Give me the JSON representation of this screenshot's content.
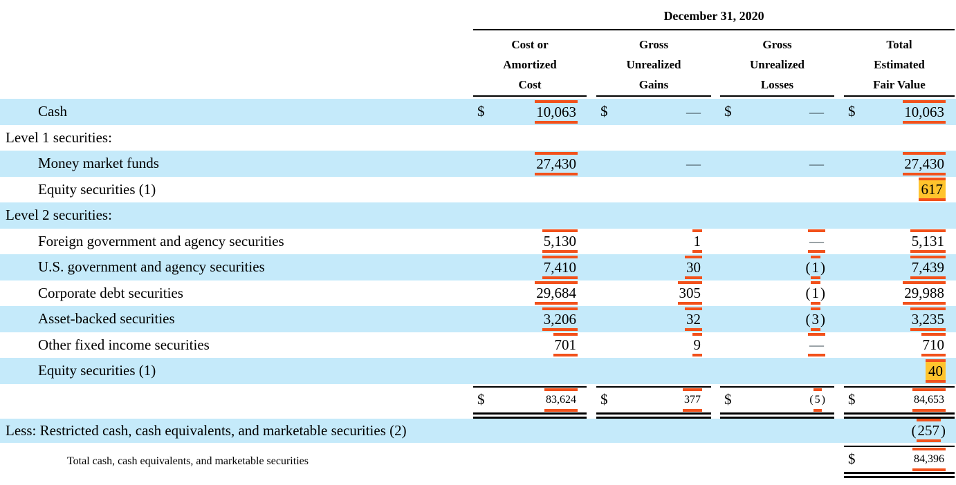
{
  "colors": {
    "row_stripe": "#c5eafa",
    "annotation_orange": "#f2511b",
    "highlight_yellow": "#ffc42d"
  },
  "header": {
    "period": "December 31, 2020",
    "columns": [
      {
        "lines": [
          "Cost or",
          "Amortized",
          "Cost"
        ]
      },
      {
        "lines": [
          "Gross",
          "Unrealized",
          "Gains"
        ]
      },
      {
        "lines": [
          "Gross",
          "Unrealized",
          "Losses"
        ]
      },
      {
        "lines": [
          "Total",
          "Estimated",
          "Fair Value"
        ]
      }
    ]
  },
  "rows": {
    "cash": {
      "label": "Cash",
      "c1": {
        "cur": "$",
        "v": "10,063"
      },
      "c2": {
        "cur": "$",
        "v": "—"
      },
      "c3": {
        "cur": "$",
        "v": "—"
      },
      "c4": {
        "cur": "$",
        "v": "10,063"
      }
    },
    "level1": {
      "label": "Level 1 securities:"
    },
    "money_market": {
      "label": "Money market funds",
      "c1": {
        "v": "27,430"
      },
      "c2": {
        "v": "—"
      },
      "c3": {
        "v": "—"
      },
      "c4": {
        "v": "27,430"
      }
    },
    "equity_l1": {
      "label": "Equity securities (1)",
      "c4": {
        "v": "617"
      }
    },
    "level2": {
      "label": "Level 2 securities:"
    },
    "foreign_gov": {
      "label": "Foreign government and agency securities",
      "c1": {
        "v": "5,130"
      },
      "c2": {
        "v": "1"
      },
      "c3": {
        "v": "—"
      },
      "c4": {
        "v": "5,131"
      }
    },
    "us_gov": {
      "label": "U.S. government and agency securities",
      "c1": {
        "v": "7,410"
      },
      "c2": {
        "v": "30"
      },
      "c3": {
        "o": "(",
        "v": "1",
        "c": ")"
      },
      "c4": {
        "v": "7,439"
      }
    },
    "corp_debt": {
      "label": "Corporate debt securities",
      "c1": {
        "v": "29,684"
      },
      "c2": {
        "v": "305"
      },
      "c3": {
        "o": "(",
        "v": "1",
        "c": ")"
      },
      "c4": {
        "v": "29,988"
      }
    },
    "asset_backed": {
      "label": "Asset-backed securities",
      "c1": {
        "v": "3,206"
      },
      "c2": {
        "v": "32"
      },
      "c3": {
        "o": "(",
        "v": "3",
        "c": ")"
      },
      "c4": {
        "v": "3,235"
      }
    },
    "other_fixed": {
      "label": "Other fixed income securities",
      "c1": {
        "v": "701"
      },
      "c2": {
        "v": "9"
      },
      "c3": {
        "v": "—"
      },
      "c4": {
        "v": "710"
      }
    },
    "equity_l2": {
      "label": "Equity securities (1)",
      "c4": {
        "v": "40"
      }
    },
    "subtotal": {
      "c1": {
        "cur": "$",
        "v": "83,624"
      },
      "c2": {
        "cur": "$",
        "v": "377"
      },
      "c3": {
        "cur": "$",
        "o": "(",
        "v": "5",
        "c": ")"
      },
      "c4": {
        "cur": "$",
        "v": "84,653"
      }
    },
    "less_restricted": {
      "label": "Less: Restricted cash, cash equivalents, and marketable securities (2)",
      "c4": {
        "o": "(",
        "v": "257",
        "c": ")"
      }
    },
    "grand_total": {
      "label": "Total cash, cash equivalents, and marketable securities",
      "c4": {
        "cur": "$",
        "v": "84,396"
      }
    }
  }
}
